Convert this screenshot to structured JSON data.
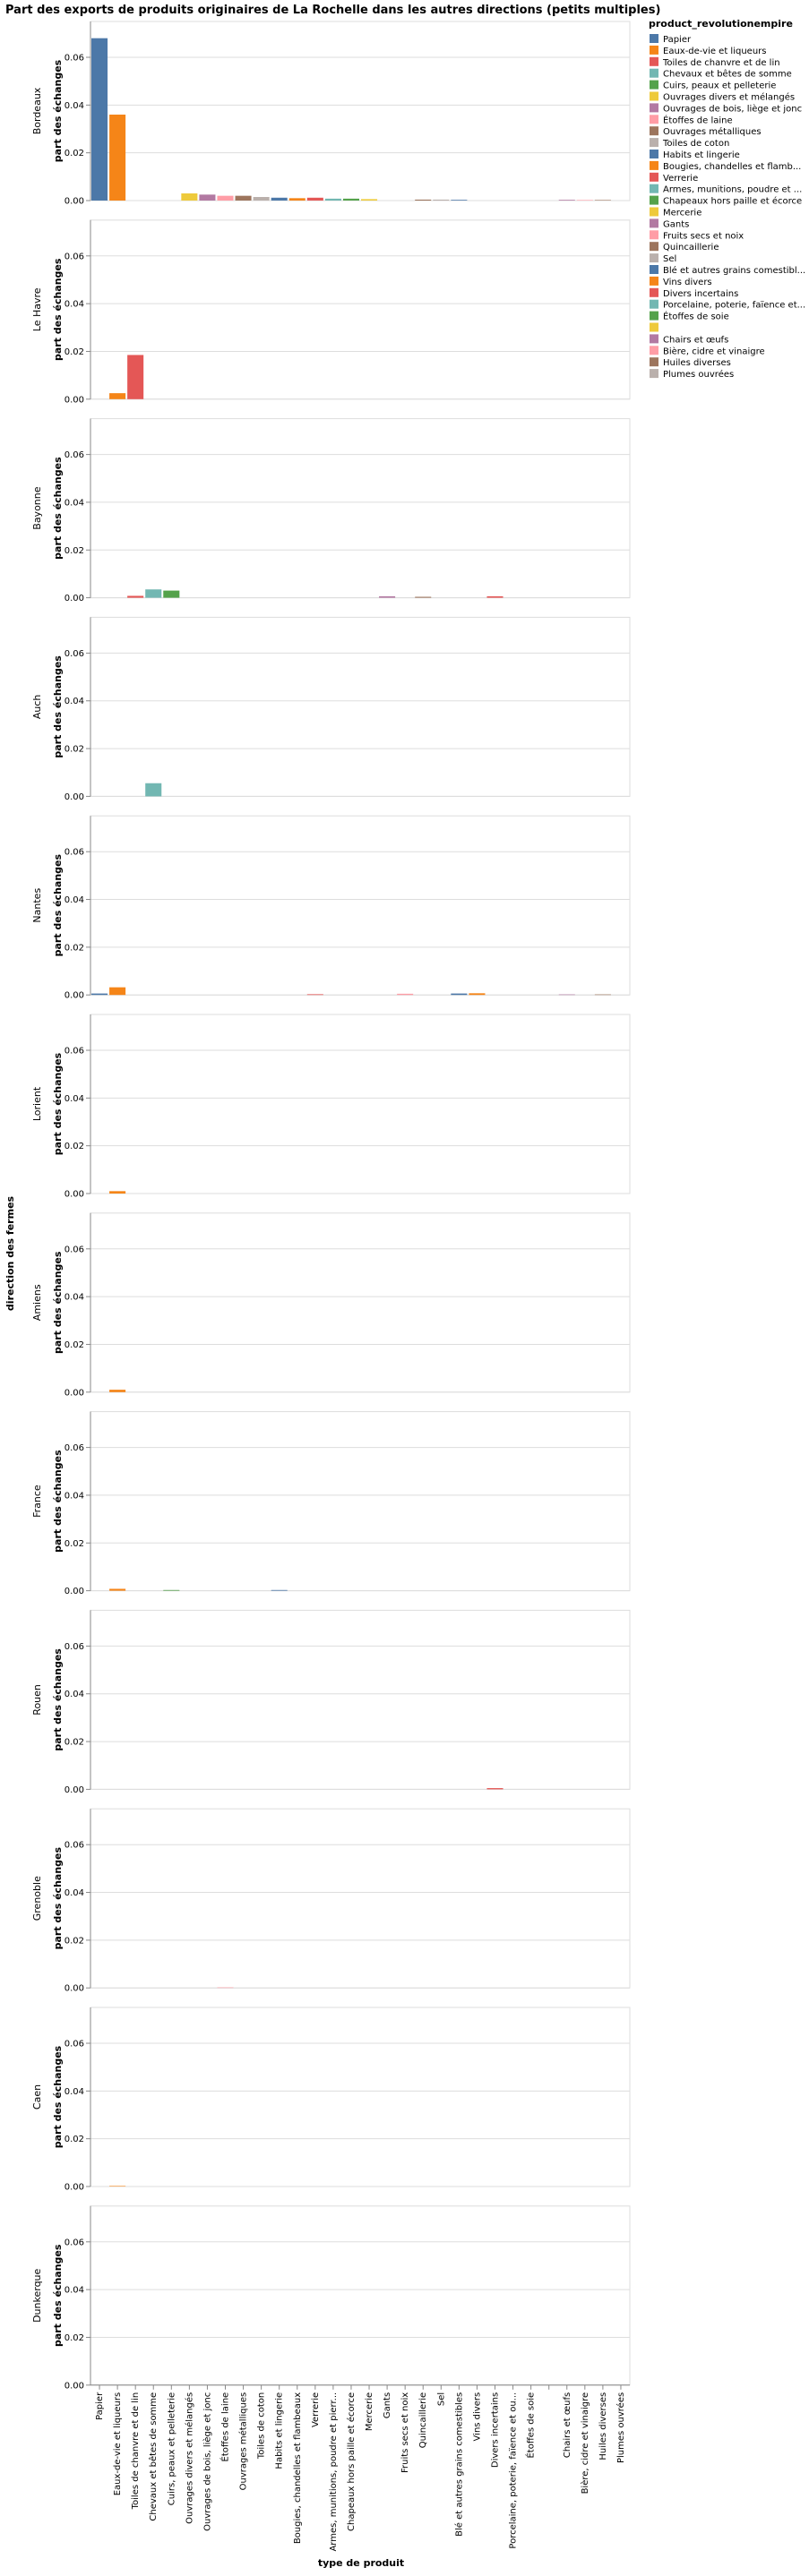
{
  "chart_data": {
    "type": "bar",
    "title": "Part des exports de produits originaires de La Rochelle dans les autres directions (petits multiples)",
    "xlabel": "type de produit",
    "ylabel": "part des échanges",
    "row_title": "direction des fermes",
    "ylim": [
      0,
      0.075
    ],
    "yticks": [
      "0.00",
      "0.02",
      "0.04",
      "0.06"
    ],
    "grid": true,
    "legend": {
      "title": "product_revolutionempire",
      "position": "right",
      "entries": [
        "Papier",
        "Eaux-de-vie et liqueurs",
        "Toiles de chanvre et de lin",
        "Chevaux et bêtes de somme",
        "Cuirs, peaux et pelleterie",
        "Ouvrages divers et mélangés",
        "Ouvrages de bois, liège et jonc",
        "Étoffes de laine",
        "Ouvrages métalliques",
        "Toiles de coton",
        "Habits et lingerie",
        "Bougies, chandelles et flamb...",
        "Verrerie",
        "Armes, munitions, poudre et ...",
        "Chapeaux hors paille et écorce",
        "Mercerie",
        "Gants",
        "Fruits secs et noix",
        "Quincaillerie",
        "Sel",
        "Blé et autres grains comestibl...",
        "Vins divers",
        "Divers incertains",
        "Porcelaine, poterie, faïence et...",
        "Étoffes de soie",
        "",
        "Chairs et œufs",
        "Bière, cidre et vinaigre",
        "Huiles diverses",
        "Plumes ouvrées"
      ]
    },
    "categories": [
      "Papier",
      "Eaux-de-vie et liqueurs",
      "Toiles de chanvre et de lin",
      "Chevaux et bêtes de somme",
      "Cuirs, peaux et pelleterie",
      "Ouvrages divers et mélangés",
      "Ouvrages de bois, liège et jonc",
      "Étoffes de laine",
      "Ouvrages métalliques",
      "Toiles de coton",
      "Habits et lingerie",
      "Bougies, chandelles et flambeaux",
      "Verrerie",
      "Armes, munitions, poudre et pierr...",
      "Chapeaux hors paille et écorce",
      "Mercerie",
      "Gants",
      "Fruits secs et noix",
      "Quincaillerie",
      "Sel",
      "Blé et autres grains comestibles",
      "Vins divers",
      "Divers incertains",
      "Porcelaine, poterie, faïence et ou...",
      "Étoffes de soie",
      "",
      "Chairs et œufs",
      "Bière, cidre et vinaigre",
      "Huiles diverses",
      "Plumes ouvrées"
    ],
    "colors": [
      "#4c78a8",
      "#f58518",
      "#e45756",
      "#72b7b2",
      "#54a24b",
      "#eeca3b",
      "#b279a2",
      "#ff9da6",
      "#9d755d",
      "#bab0ac",
      "#4c78a8",
      "#f58518",
      "#e45756",
      "#72b7b2",
      "#54a24b",
      "#eeca3b",
      "#b279a2",
      "#ff9da6",
      "#9d755d",
      "#bab0ac",
      "#4c78a8",
      "#f58518",
      "#e45756",
      "#72b7b2",
      "#54a24b",
      "#eeca3b",
      "#b279a2",
      "#ff9da6",
      "#9d755d",
      "#bab0ac"
    ],
    "facets": [
      {
        "name": "Bordeaux",
        "values": [
          0.068,
          0.036,
          0,
          0,
          0,
          0.003,
          0.0025,
          0.002,
          0.002,
          0.0015,
          0.0012,
          0.001,
          0.0012,
          0.0008,
          0.0008,
          0.0006,
          0,
          0,
          0.0004,
          0.0004,
          0.0003,
          0,
          0,
          0,
          0,
          0,
          0.0003,
          0.0002,
          0.0002,
          0
        ]
      },
      {
        "name": "Le Havre",
        "values": [
          0,
          0.0025,
          0.0185,
          0,
          0,
          0,
          0,
          0,
          0,
          0,
          0,
          0,
          0,
          0,
          0,
          0,
          0,
          0,
          0,
          0,
          0,
          0,
          0,
          0,
          0,
          0,
          0,
          0,
          0,
          0
        ]
      },
      {
        "name": "Bayonne",
        "values": [
          0,
          0,
          0.0008,
          0.0035,
          0.003,
          0,
          0,
          0,
          0,
          0,
          0,
          0,
          0,
          0,
          0,
          0,
          0.0006,
          0,
          0.0004,
          0,
          0,
          0,
          0.0006,
          0,
          0,
          0,
          0,
          0,
          0,
          0
        ]
      },
      {
        "name": "Auch",
        "values": [
          0,
          0,
          0,
          0.0055,
          0,
          0,
          0,
          0,
          0,
          0,
          0,
          0,
          0,
          0,
          0,
          0,
          0,
          0,
          0,
          0,
          0,
          0,
          0,
          0,
          0,
          0,
          0,
          0,
          0,
          0
        ]
      },
      {
        "name": "Nantes",
        "values": [
          0.0006,
          0.0032,
          0,
          0,
          0,
          0,
          0,
          0,
          0,
          0,
          0,
          0,
          0.0003,
          0,
          0,
          0,
          0,
          0.0005,
          0,
          0,
          0.0006,
          0.0007,
          0,
          0,
          0,
          0,
          0.0002,
          0,
          0.0001,
          0
        ]
      },
      {
        "name": "Lorient",
        "values": [
          0,
          0.001,
          0,
          0,
          0,
          0,
          0,
          0,
          0,
          0,
          0,
          0,
          0,
          0,
          0,
          0,
          0,
          0,
          0,
          0,
          0,
          0,
          0,
          0,
          0,
          0,
          0,
          0,
          0,
          0
        ]
      },
      {
        "name": "Amiens",
        "values": [
          0,
          0.001,
          0,
          0,
          0,
          0,
          0,
          0,
          0,
          0,
          0,
          0,
          0,
          0,
          0,
          0,
          0,
          0,
          0,
          0,
          0,
          0,
          0,
          0,
          0,
          0,
          0,
          0,
          0,
          0
        ]
      },
      {
        "name": "France",
        "values": [
          0,
          0.0008,
          0,
          0,
          0.0003,
          0,
          0,
          0,
          0,
          0,
          0.0003,
          0,
          0,
          0,
          0,
          0,
          0,
          0,
          0,
          0,
          0,
          0,
          0,
          0,
          0,
          0,
          0,
          0,
          0,
          0
        ]
      },
      {
        "name": "Rouen",
        "values": [
          0,
          0,
          0,
          0,
          0,
          0,
          0,
          0,
          0,
          0,
          0,
          0,
          0,
          0,
          0,
          0,
          0,
          0,
          0,
          0,
          0,
          0,
          0.0005,
          0,
          0,
          0,
          0,
          0,
          0,
          0
        ]
      },
      {
        "name": "Grenoble",
        "values": [
          0,
          0,
          0,
          0,
          0,
          0,
          0,
          0.0002,
          0,
          0,
          0,
          0,
          0,
          0,
          0,
          0,
          0,
          0,
          0,
          0,
          0,
          0,
          0,
          0,
          0,
          0,
          0,
          0,
          0,
          0
        ]
      },
      {
        "name": "Caen",
        "values": [
          0,
          0.0002,
          0,
          0,
          0,
          0,
          0,
          0,
          0,
          0,
          0,
          0,
          0,
          0,
          0,
          0,
          0,
          0,
          0,
          0,
          0,
          0,
          0,
          0,
          0,
          0,
          0,
          0,
          0,
          0
        ]
      },
      {
        "name": "Dunkerque",
        "values": [
          0,
          0,
          0,
          0,
          0,
          0,
          0,
          0,
          0,
          0,
          0,
          0,
          0,
          0,
          0,
          0,
          0,
          0,
          0,
          0,
          0,
          0,
          0,
          0,
          0,
          0,
          0,
          0,
          0,
          0
        ]
      }
    ]
  }
}
